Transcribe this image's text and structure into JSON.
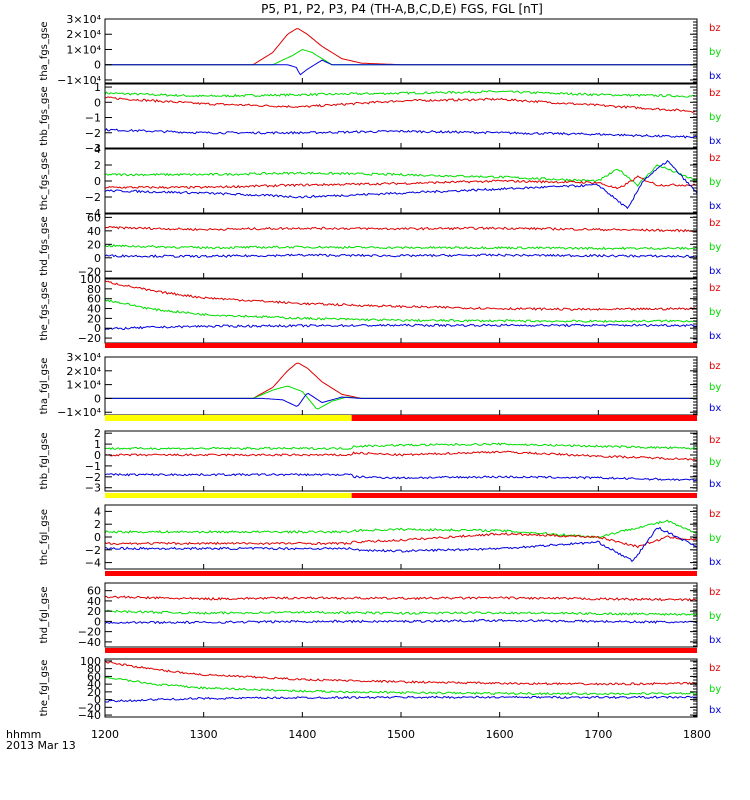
{
  "title": "P5, P1, P2, P3, P4 (TH-A,B,C,D,E) FGS, FGL [nT]",
  "time_axis": {
    "label": "hhmm",
    "date": "2013 Mar 13",
    "ticks": [
      "1200",
      "1300",
      "1400",
      "1500",
      "1600",
      "1700",
      "1800"
    ],
    "range": [
      1200,
      1800
    ]
  },
  "legend": {
    "bz": {
      "label": "bz",
      "color": "#dd0000"
    },
    "by": {
      "label": "by",
      "color": "#00dd00"
    },
    "bx": {
      "label": "bx",
      "color": "#0000dd"
    }
  },
  "status_bar_colors": {
    "red": "#ff0000",
    "yellow": "#ffff00"
  },
  "chart_data": [
    {
      "type": "line",
      "name": "tha_fgs_gse",
      "ylabel": "tha_fgs_gse",
      "ylim": [
        -12000,
        30000
      ],
      "y_ticks": [
        {
          "v": 30000,
          "t": "3×10⁴"
        },
        {
          "v": 20000,
          "t": "2×10⁴"
        },
        {
          "v": 10000,
          "t": "1×10⁴"
        },
        {
          "v": 0,
          "t": "0"
        },
        {
          "v": -10000,
          "t": "−1×10⁴"
        }
      ],
      "series": [
        {
          "name": "bz",
          "x": [
            1200,
            1350,
            1370,
            1385,
            1395,
            1405,
            1420,
            1440,
            1460,
            1500,
            1800
          ],
          "y": [
            0,
            0,
            8000,
            20000,
            24000,
            20000,
            12000,
            4000,
            1000,
            0,
            0
          ]
        },
        {
          "name": "by",
          "x": [
            1200,
            1370,
            1390,
            1400,
            1410,
            1420,
            1430,
            1440,
            1800
          ],
          "y": [
            0,
            0,
            6000,
            10000,
            8000,
            4000,
            0,
            0,
            0
          ]
        },
        {
          "name": "bx",
          "x": [
            1200,
            1385,
            1395,
            1397,
            1405,
            1420,
            1430,
            1440,
            1800
          ],
          "y": [
            0,
            0,
            -2000,
            -7000,
            -3000,
            3000,
            0,
            0,
            0
          ]
        }
      ]
    },
    {
      "type": "line",
      "name": "thb_fgs_gse",
      "ylabel": "thb_fgs_gse",
      "ylim": [
        -3,
        1.2
      ],
      "y_ticks": [
        {
          "v": 1,
          "t": "1"
        },
        {
          "v": 0,
          "t": "0"
        },
        {
          "v": -1,
          "t": "−1"
        },
        {
          "v": -2,
          "t": "−2"
        },
        {
          "v": -3,
          "t": "−3"
        }
      ],
      "series": [
        {
          "name": "by",
          "x": [
            1200,
            1300,
            1400,
            1500,
            1600,
            1700,
            1800
          ],
          "y": [
            0.6,
            0.4,
            0.5,
            0.6,
            0.7,
            0.5,
            0.4
          ]
        },
        {
          "name": "bz",
          "x": [
            1200,
            1300,
            1400,
            1500,
            1600,
            1700,
            1800
          ],
          "y": [
            0.3,
            -0.1,
            -0.3,
            0.1,
            0.2,
            -0.2,
            -0.6
          ]
        },
        {
          "name": "bx",
          "x": [
            1200,
            1300,
            1400,
            1500,
            1600,
            1700,
            1800
          ],
          "y": [
            -1.8,
            -2.0,
            -2.0,
            -1.9,
            -2.0,
            -2.1,
            -2.3
          ]
        }
      ]
    },
    {
      "type": "line",
      "name": "thc_fgs_gse",
      "ylabel": "thc_fgs_gse",
      "ylim": [
        -4,
        4
      ],
      "y_ticks": [
        {
          "v": 4,
          "t": "4"
        },
        {
          "v": 2,
          "t": "2"
        },
        {
          "v": 0,
          "t": "0"
        },
        {
          "v": -2,
          "t": "−2"
        },
        {
          "v": -4,
          "t": "−4"
        }
      ],
      "series": [
        {
          "name": "by",
          "x": [
            1200,
            1300,
            1400,
            1500,
            1600,
            1700,
            1720,
            1740,
            1760,
            1800
          ],
          "y": [
            0.8,
            0.8,
            1.0,
            0.8,
            0.5,
            0.0,
            1.5,
            -0.5,
            2.0,
            0.0
          ]
        },
        {
          "name": "bz",
          "x": [
            1200,
            1300,
            1400,
            1500,
            1600,
            1700,
            1720,
            1740,
            1760,
            1800
          ],
          "y": [
            -0.8,
            -0.8,
            -0.5,
            -0.3,
            0.0,
            -0.2,
            -1.0,
            0.5,
            -0.5,
            -0.5
          ]
        },
        {
          "name": "bx",
          "x": [
            1200,
            1300,
            1400,
            1500,
            1600,
            1700,
            1730,
            1745,
            1770,
            1800
          ],
          "y": [
            -1.2,
            -1.5,
            -2.0,
            -1.5,
            -1.0,
            -0.5,
            -3.5,
            0.0,
            2.5,
            -1.5
          ]
        }
      ]
    },
    {
      "type": "line",
      "name": "thd_fgs_gse",
      "ylabel": "thd_fgs_gse",
      "ylim": [
        -30,
        65
      ],
      "y_ticks": [
        {
          "v": 60,
          "t": "60"
        },
        {
          "v": 40,
          "t": "40"
        },
        {
          "v": 20,
          "t": "20"
        },
        {
          "v": 0,
          "t": "0"
        },
        {
          "v": -20,
          "t": "−20"
        }
      ],
      "series": [
        {
          "name": "bz",
          "x": [
            1200,
            1300,
            1400,
            1500,
            1600,
            1700,
            1800
          ],
          "y": [
            45,
            42,
            44,
            43,
            44,
            42,
            40
          ]
        },
        {
          "name": "by",
          "x": [
            1200,
            1300,
            1400,
            1500,
            1600,
            1700,
            1800
          ],
          "y": [
            18,
            15,
            16,
            15,
            15,
            14,
            14
          ]
        },
        {
          "name": "bx",
          "x": [
            1200,
            1300,
            1400,
            1500,
            1600,
            1700,
            1800
          ],
          "y": [
            3,
            2,
            4,
            3,
            4,
            3,
            2
          ]
        }
      ]
    },
    {
      "type": "line",
      "name": "the_fgs_gse",
      "ylabel": "the_fgs_gse",
      "ylim": [
        -30,
        100
      ],
      "y_ticks": [
        {
          "v": 100,
          "t": "100"
        },
        {
          "v": 80,
          "t": "80"
        },
        {
          "v": 60,
          "t": "60"
        },
        {
          "v": 40,
          "t": "40"
        },
        {
          "v": 20,
          "t": "20"
        },
        {
          "v": 0,
          "t": "0"
        },
        {
          "v": -20,
          "t": "−20"
        }
      ],
      "series": [
        {
          "name": "bz",
          "x": [
            1200,
            1250,
            1300,
            1400,
            1500,
            1600,
            1700,
            1800
          ],
          "y": [
            95,
            75,
            62,
            50,
            44,
            40,
            38,
            40
          ]
        },
        {
          "name": "by",
          "x": [
            1200,
            1250,
            1300,
            1400,
            1500,
            1600,
            1700,
            1800
          ],
          "y": [
            58,
            38,
            28,
            20,
            16,
            15,
            14,
            15
          ]
        },
        {
          "name": "bx",
          "x": [
            1200,
            1250,
            1300,
            1400,
            1500,
            1600,
            1700,
            1800
          ],
          "y": [
            -2,
            2,
            4,
            5,
            6,
            6,
            6,
            6
          ]
        }
      ]
    },
    {
      "type": "line",
      "name": "tha_fgl_gse",
      "ylabel": "tha_fgl_gse",
      "ylim": [
        -12000,
        30000
      ],
      "y_ticks": [
        {
          "v": 30000,
          "t": "3×10⁴"
        },
        {
          "v": 20000,
          "t": "2×10⁴"
        },
        {
          "v": 10000,
          "t": "1×10⁴"
        },
        {
          "v": 0,
          "t": "0"
        },
        {
          "v": -10000,
          "t": "−1×10⁴"
        }
      ],
      "series": [
        {
          "name": "bz",
          "x": [
            1200,
            1350,
            1370,
            1385,
            1395,
            1405,
            1420,
            1440,
            1460,
            1800
          ],
          "y": [
            0,
            0,
            8000,
            20000,
            26000,
            22000,
            12000,
            3000,
            0,
            0
          ]
        },
        {
          "name": "by",
          "x": [
            1200,
            1350,
            1370,
            1385,
            1400,
            1415,
            1430,
            1445,
            1460,
            1800
          ],
          "y": [
            0,
            0,
            6000,
            9000,
            5000,
            -8000,
            -2000,
            1000,
            0,
            0
          ]
        },
        {
          "name": "bx",
          "x": [
            1200,
            1360,
            1380,
            1395,
            1405,
            1420,
            1440,
            1460,
            1800
          ],
          "y": [
            0,
            0,
            -1000,
            -6000,
            4000,
            -3000,
            1000,
            0,
            0
          ]
        }
      ]
    },
    {
      "type": "line",
      "name": "thb_fgl_gse",
      "ylabel": "thb_fgl_gse",
      "ylim": [
        -3.3,
        2.2
      ],
      "y_ticks": [
        {
          "v": 2,
          "t": "2"
        },
        {
          "v": 1,
          "t": "1"
        },
        {
          "v": 0,
          "t": "0"
        },
        {
          "v": -1,
          "t": "−1"
        },
        {
          "v": -2,
          "t": "−2"
        },
        {
          "v": -3,
          "t": "−3"
        }
      ],
      "series": [
        {
          "name": "by",
          "x": [
            1200,
            1450,
            1451,
            1500,
            1600,
            1700,
            1800
          ],
          "y": [
            0.6,
            0.6,
            0.8,
            0.9,
            1.0,
            0.8,
            0.6
          ]
        },
        {
          "name": "bz",
          "x": [
            1200,
            1450,
            1451,
            1500,
            1600,
            1700,
            1800
          ],
          "y": [
            0.0,
            0.0,
            0.2,
            0.0,
            0.3,
            -0.1,
            -0.4
          ]
        },
        {
          "name": "bx",
          "x": [
            1200,
            1450,
            1451,
            1500,
            1600,
            1700,
            1800
          ],
          "y": [
            -1.8,
            -1.8,
            -2.0,
            -2.1,
            -2.0,
            -2.1,
            -2.3
          ]
        }
      ]
    },
    {
      "type": "line",
      "name": "thc_fgl_gse",
      "ylabel": "thc_fgl_gse",
      "ylim": [
        -5,
        5
      ],
      "y_ticks": [
        {
          "v": 4,
          "t": "4"
        },
        {
          "v": 2,
          "t": "2"
        },
        {
          "v": 0,
          "t": "0"
        },
        {
          "v": -2,
          "t": "−2"
        },
        {
          "v": -4,
          "t": "−4"
        }
      ],
      "series": [
        {
          "name": "by",
          "x": [
            1200,
            1450,
            1451,
            1500,
            1600,
            1700,
            1740,
            1770,
            1800
          ],
          "y": [
            0.8,
            0.8,
            1.0,
            1.2,
            1.0,
            0.0,
            1.5,
            2.5,
            0.5
          ]
        },
        {
          "name": "bz",
          "x": [
            1200,
            1450,
            1451,
            1500,
            1600,
            1700,
            1740,
            1770,
            1800
          ],
          "y": [
            -1.0,
            -1.0,
            -0.8,
            -0.5,
            0.5,
            0.0,
            -1.5,
            0.0,
            -0.5
          ]
        },
        {
          "name": "bx",
          "x": [
            1200,
            1450,
            1451,
            1500,
            1600,
            1700,
            1735,
            1760,
            1800
          ],
          "y": [
            -1.8,
            -1.8,
            -2.0,
            -2.2,
            -1.8,
            -0.8,
            -3.8,
            1.5,
            -1.5
          ]
        }
      ]
    },
    {
      "type": "line",
      "name": "thd_fgl_gse",
      "ylabel": "thd_fgl_gse",
      "ylim": [
        -50,
        75
      ],
      "y_ticks": [
        {
          "v": 60,
          "t": "60"
        },
        {
          "v": 40,
          "t": "40"
        },
        {
          "v": 20,
          "t": "20"
        },
        {
          "v": 0,
          "t": "0"
        },
        {
          "v": -20,
          "t": "−20"
        },
        {
          "v": -40,
          "t": "−40"
        }
      ],
      "series": [
        {
          "name": "bz",
          "x": [
            1200,
            1300,
            1400,
            1500,
            1600,
            1700,
            1800
          ],
          "y": [
            48,
            44,
            46,
            45,
            46,
            44,
            42
          ]
        },
        {
          "name": "by",
          "x": [
            1200,
            1300,
            1400,
            1500,
            1600,
            1700,
            1800
          ],
          "y": [
            20,
            16,
            18,
            16,
            17,
            15,
            14
          ]
        },
        {
          "name": "bx",
          "x": [
            1200,
            1300,
            1400,
            1500,
            1600,
            1700,
            1800
          ],
          "y": [
            -2,
            -2,
            0,
            0,
            2,
            0,
            -2
          ]
        }
      ]
    },
    {
      "type": "line",
      "name": "the_fgl_gse",
      "ylabel": "the_fgl_gse",
      "ylim": [
        -45,
        105
      ],
      "y_ticks": [
        {
          "v": 100,
          "t": "100"
        },
        {
          "v": 80,
          "t": "80"
        },
        {
          "v": 60,
          "t": "60"
        },
        {
          "v": 40,
          "t": "40"
        },
        {
          "v": 20,
          "t": "20"
        },
        {
          "v": 0,
          "t": "0"
        },
        {
          "v": -20,
          "t": "−20"
        },
        {
          "v": -40,
          "t": "−40"
        }
      ],
      "series": [
        {
          "name": "bz",
          "x": [
            1200,
            1250,
            1300,
            1400,
            1500,
            1600,
            1700,
            1800
          ],
          "y": [
            98,
            78,
            64,
            52,
            46,
            42,
            40,
            42
          ]
        },
        {
          "name": "by",
          "x": [
            1200,
            1250,
            1300,
            1400,
            1500,
            1600,
            1700,
            1800
          ],
          "y": [
            58,
            40,
            30,
            22,
            18,
            16,
            15,
            16
          ]
        },
        {
          "name": "bx",
          "x": [
            1200,
            1250,
            1300,
            1400,
            1500,
            1600,
            1700,
            1800
          ],
          "y": [
            -5,
            0,
            3,
            5,
            6,
            6,
            6,
            6
          ]
        }
      ]
    }
  ]
}
